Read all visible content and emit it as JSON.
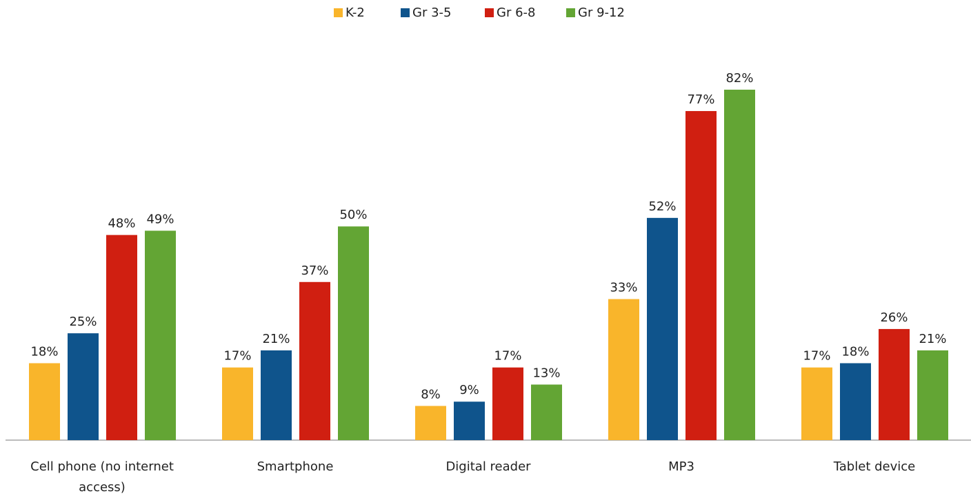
{
  "chart_data": {
    "type": "bar",
    "categories": [
      "Cell phone (no internet access)",
      "Smartphone",
      "Digital reader",
      "MP3",
      "Tablet device"
    ],
    "series": [
      {
        "name": "K-2",
        "color": "#f9b52b",
        "values": [
          18,
          17,
          8,
          33,
          17
        ],
        "value_labels": [
          "18%",
          "17%",
          "8%",
          "33%",
          "17%"
        ]
      },
      {
        "name": "Gr 3-5",
        "color": "#0f548c",
        "values": [
          25,
          21,
          9,
          52,
          18
        ],
        "value_labels": [
          "25%",
          "21%",
          "9%",
          "52%",
          "18%"
        ]
      },
      {
        "name": "Gr 6-8",
        "color": "#d01f11",
        "values": [
          48,
          37,
          17,
          77,
          26
        ],
        "value_labels": [
          "48%",
          "37%",
          "17%",
          "77%",
          "26%"
        ]
      },
      {
        "name": "Gr 9-12",
        "color": "#63a534",
        "values": [
          49,
          50,
          13,
          82,
          21
        ],
        "value_labels": [
          "49%",
          "50%",
          "13%",
          "82%",
          "21%"
        ]
      }
    ],
    "legend": "top"
  }
}
